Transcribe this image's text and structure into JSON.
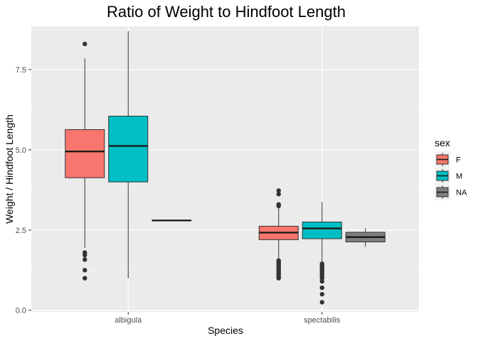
{
  "chart_data": {
    "type": "boxplot",
    "title": "Ratio of Weight to Hindfoot Length",
    "xlabel": "Species",
    "ylabel": "Weight / Hindfoot Length",
    "categories": [
      "albigula",
      "spectabilis"
    ],
    "ylim": [
      -0.05,
      8.85
    ],
    "yticks": [
      0.0,
      2.5,
      5.0,
      7.5
    ],
    "ytick_labels": [
      "0.0",
      "2.5",
      "5.0",
      "7.5"
    ],
    "grid": true,
    "legend": {
      "title": "sex",
      "position": "right",
      "items": [
        {
          "label": "F",
          "color": "#f8766d"
        },
        {
          "label": "M",
          "color": "#00bfc4"
        },
        {
          "label": "NA",
          "color": "#7f7f7f"
        }
      ]
    },
    "boxes": [
      {
        "category": "albigula",
        "group": "F",
        "lower_whisker": 1.95,
        "q1": 4.13,
        "median": 4.95,
        "q3": 5.63,
        "upper_whisker": 7.85,
        "outliers": [
          8.3,
          1.8,
          1.72,
          1.58,
          1.25,
          1.0
        ]
      },
      {
        "category": "albigula",
        "group": "M",
        "lower_whisker": 1.0,
        "q1": 4.0,
        "median": 5.12,
        "q3": 6.05,
        "upper_whisker": 8.7,
        "outliers": []
      },
      {
        "category": "albigula",
        "group": "NA",
        "lower_whisker": 2.8,
        "q1": 2.8,
        "median": 2.8,
        "q3": 2.8,
        "upper_whisker": 2.8,
        "outliers": []
      },
      {
        "category": "spectabilis",
        "group": "F",
        "lower_whisker": 1.6,
        "q1": 2.2,
        "median": 2.42,
        "q3": 2.62,
        "upper_whisker": 3.2,
        "outliers": [
          3.73,
          3.62,
          3.3,
          3.25,
          1.55,
          1.5,
          1.45,
          1.4,
          1.35,
          1.3,
          1.25,
          1.2,
          1.15,
          1.1,
          1.05,
          1.0
        ]
      },
      {
        "category": "spectabilis",
        "group": "M",
        "lower_whisker": 1.5,
        "q1": 2.23,
        "median": 2.55,
        "q3": 2.75,
        "upper_whisker": 3.37,
        "outliers": [
          1.45,
          1.4,
          1.35,
          1.3,
          1.25,
          1.2,
          1.15,
          1.1,
          1.05,
          1.0,
          0.9,
          0.7,
          0.5,
          0.25
        ]
      },
      {
        "category": "spectabilis",
        "group": "NA",
        "lower_whisker": 1.98,
        "q1": 2.13,
        "median": 2.28,
        "q3": 2.43,
        "upper_whisker": 2.55,
        "outliers": []
      }
    ]
  }
}
